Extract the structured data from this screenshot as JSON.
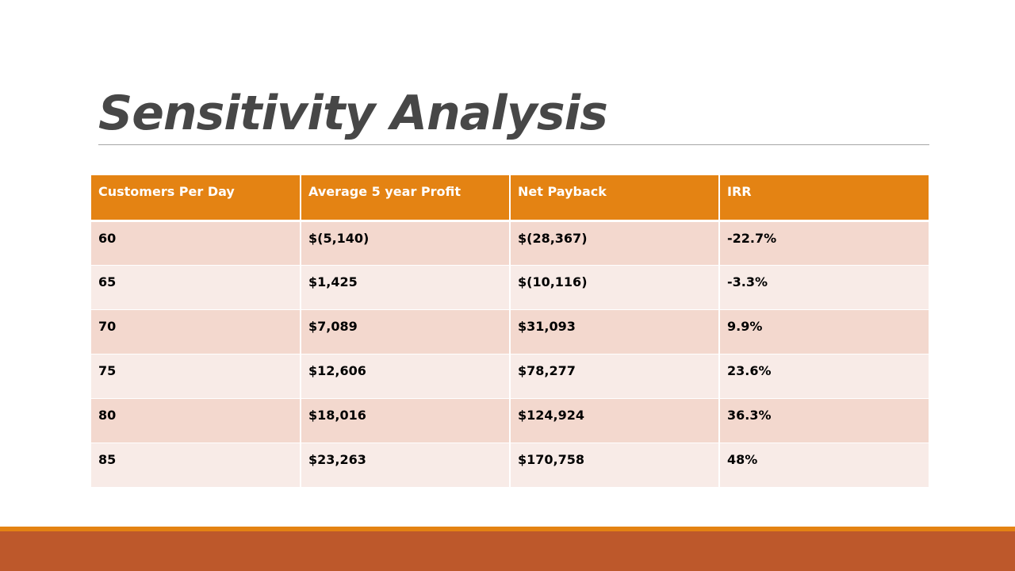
{
  "slide": {
    "title": "Sensitivity Analysis"
  },
  "table": {
    "headers": [
      "Customers Per Day",
      "Average 5 year Profit",
      "Net Payback",
      "IRR"
    ],
    "rows": [
      [
        "60",
        "$(5,140)",
        "$(28,367)",
        "-22.7%"
      ],
      [
        "65",
        "$1,425",
        "$(10,116)",
        "-3.3%"
      ],
      [
        "70",
        "$7,089",
        "$31,093",
        "9.9%"
      ],
      [
        "75",
        "$12,606",
        "$78,277",
        "23.6%"
      ],
      [
        "80",
        "$18,016",
        "$124,924",
        "36.3%"
      ],
      [
        "85",
        "$23,263",
        "$170,758",
        "48%"
      ]
    ]
  },
  "colors": {
    "header_fill": "#e48313",
    "row_odd_fill": "#f3d8ce",
    "row_even_fill": "#f8ebe7",
    "footer_accent": "#e48313",
    "footer_fill": "#bd582b",
    "title_text": "#474747"
  }
}
